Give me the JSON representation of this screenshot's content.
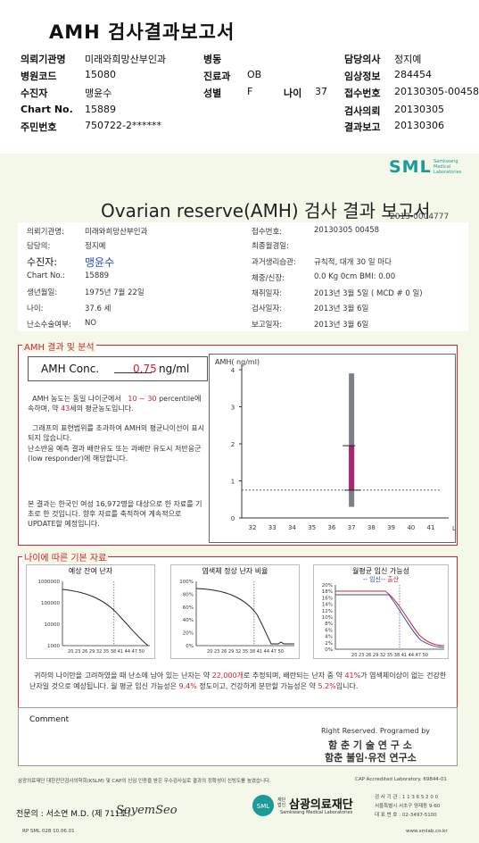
{
  "header": {
    "title": "AMH 검사결과보고서",
    "rows": [
      {
        "label1": "의뢰기관명",
        "value1": "미래와희망산부인과",
        "label2": "병동",
        "value2": "",
        "label3": "담당의사",
        "value3": "정지예"
      },
      {
        "label1": "병원코드",
        "value1": "15080",
        "label2": "진료과",
        "value2": "OB",
        "label3": "임상정보",
        "value3": "284454"
      },
      {
        "label1": "수진자",
        "value1": "맹윤수",
        "label2": "성별",
        "value2": "F",
        "label2b": "나이",
        "value2b": "37",
        "label3": "접수번호",
        "value3": "20130305-00458"
      },
      {
        "label1": "Chart No.",
        "value1": "15889",
        "label2": "",
        "value2": "",
        "label3": "검사의뢰",
        "value3": "20130305"
      },
      {
        "label1": "주민번호",
        "value1": "750722-2******",
        "label2": "",
        "value2": "",
        "label3": "결과보고",
        "value3": "20130306"
      }
    ]
  },
  "report": {
    "logo": "SML",
    "logo_sub": [
      "Samkwang",
      "Medical",
      "Laboratories"
    ],
    "title": "Ovarian reserve(AMH) 검사 결과 보고서",
    "number": "2013-0004777",
    "patient_left": [
      {
        "label": "의뢰기관명:",
        "value": "미래와희망산부인과"
      },
      {
        "label": "담당의:",
        "value": "정지예"
      },
      {
        "label": "수진자:",
        "value": "맹윤수"
      },
      {
        "label": "Chart No.:",
        "value": "15889"
      },
      {
        "label": "생년월일:",
        "value": "1975년 7월 22일"
      },
      {
        "label": "나이:",
        "value": "37.6 세"
      },
      {
        "label": "난소수술여부:",
        "value": "NO"
      }
    ],
    "patient_right": [
      {
        "label": "접수번호:",
        "value": "20130305 00458"
      },
      {
        "label": "최종월경일:",
        "value": ""
      },
      {
        "label": "과거생리습관:",
        "value": "규칙적,  대개   30 일 마다"
      },
      {
        "label": "체중/신장:",
        "value": "0.0  Kg        0cm      BMI:     0.00"
      },
      {
        "label": "채취일자:",
        "value": "2013년 3월 5일     ( MCD #  0 일)"
      },
      {
        "label": "검사일자:",
        "value": "2013년 3월 6일"
      },
      {
        "label": "보고일자:",
        "value": "2013년 3월 6일"
      }
    ]
  },
  "amh_section": {
    "title": "AMH 결과 및 분석",
    "conc_label": "AMH Conc.",
    "conc_value": "0.75",
    "conc_unit": "ng/ml",
    "para1_a": "AMH 농도는 동일 나이군에서",
    "para1_range": "10 ~  30",
    "para1_b": "percentile에 속하며,  약",
    "para1_age": "43",
    "para1_c": "세의 평균농도입니다.",
    "para2": "그래프의 표현범위를 초과하여 AMH의 평균나이선이 표시되지 않습니다.",
    "para3": "난소반응 예측 결과 배란유도 또는 과배란 유도시 저반응군 (low responder)에 해당합니다.",
    "note": "본 결과는 한국인 여성 16,972명을 대상으로 한 자료를 기초로 한 것입니다. 향후 자료를 축적하여 계속적으로 UPDATE할 예정입니다."
  },
  "chart_data": [
    {
      "type": "bar",
      "title": "",
      "ylabel": "AMH( ng/ml)",
      "xlabel": "나이",
      "x": [
        32,
        33,
        34,
        35,
        36,
        37,
        38,
        39,
        40,
        41
      ],
      "ylim": [
        0,
        4
      ],
      "yticks": [
        0,
        1,
        2,
        3,
        4
      ],
      "range_bar": {
        "age": 37,
        "low": 0.3,
        "high": 3.9
      },
      "patient_bar": {
        "age": 37,
        "low": 0.75,
        "high": 1.95
      },
      "reference_line": 0.75
    }
  ],
  "age_section": {
    "title": "나이에 따른 기본 자료",
    "chart1_title": "예상 잔여 난자",
    "chart1_yticks": [
      "1000000",
      "100000",
      "10000",
      "1000"
    ],
    "chart2_title": "염색체 정상 난자 비율",
    "chart2_yticks": [
      "100%",
      "80%",
      "60%",
      "40%",
      "20%",
      "0%"
    ],
    "chart3_title": "월평균 임신 가능성",
    "chart3_legend_a": "-- 임신--",
    "chart3_legend_b": "출산",
    "chart3_yticks": [
      "20%",
      "18%",
      "16%",
      "14%",
      "12%",
      "10%",
      "8%",
      "6%",
      "4%",
      "2%",
      "0%"
    ],
    "xticks": "20 23 26 29 32 35 38 41 44 47 50",
    "summary_a": "귀하의 나이만을 고려하였을 때 난소에 남아 있는 난자는 약",
    "summary_eggs": "22,000개",
    "summary_b": "로 추정되며, 배란되는 난자 중 약",
    "summary_pct": "41%",
    "summary_c": "가 염색체이상이 없는 건강한 난자일 것으로 예상됩니다. 월 평균 임신 가능성은",
    "summary_preg": "9.4%",
    "summary_d": "정도이고, 건강하게 분만할 가능성은 약",
    "summary_birth": "5.2%",
    "summary_e": "입니다."
  },
  "comment": {
    "label": "Comment"
  },
  "rights": {
    "line1": "Right Reserved. Programed by",
    "line2": "함 춘 기 술 연 구 소",
    "line3": "함춘 불임·유전 연구소"
  },
  "footer": {
    "disclaimer": "삼광의료재단 대한진단검사의학회(KSLM) 및 CAP의 신임 인증을 받은 우수검사실로 결과의 정확성이 신빙도를 높였습니다.",
    "cap": "CAP  Accredited  Laboratory.  69844-01",
    "doctor": "전문의 : 서소연 M.D. (제 711호)",
    "signature": "SoyemSeo",
    "foundation": "삼광의료재단",
    "foundation_small": "재단 법인",
    "foundation_en": "Samkwang Medical Laboratories",
    "reg": "검 사 기 관 : 1 1 3 6 5 2 0 0",
    "addr": "서울특별시 서초구 양재동 9-60",
    "tel": "대 표 번 호 : 02-3497-5100",
    "code": "RP  SML  028  10.06.01",
    "web": "www.smlab.co.kr"
  }
}
